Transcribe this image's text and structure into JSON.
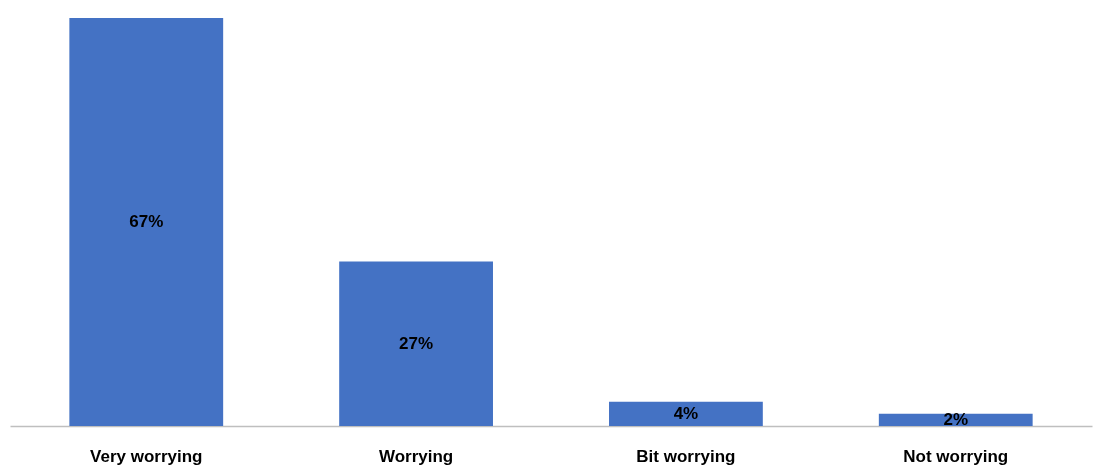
{
  "chart_data": {
    "type": "bar",
    "categories": [
      "Very worrying",
      "Worrying",
      "Bit worrying",
      "Not worrying"
    ],
    "values": [
      67,
      27,
      4,
      2
    ],
    "value_labels": [
      "67%",
      "27%",
      "4%",
      "2%"
    ],
    "color": "#4472c4"
  }
}
